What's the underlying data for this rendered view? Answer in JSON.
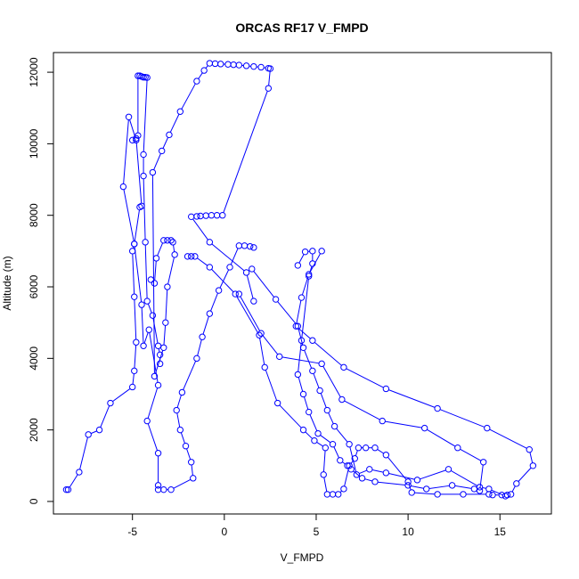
{
  "chart_data": {
    "type": "scatter",
    "title": "ORCAS RF17 V_FMPD",
    "xlabel": "V_FMPD",
    "ylabel": "Altitude (m)",
    "xlim": [
      -9.3,
      17.8
    ],
    "ylim": [
      -350,
      12550
    ],
    "x_ticks": [
      -5,
      0,
      5,
      10,
      15
    ],
    "x_tick_labels": [
      "-5",
      "0",
      "5",
      "10",
      "15"
    ],
    "y_ticks": [
      0,
      2000,
      4000,
      6000,
      8000,
      10000,
      12000
    ],
    "y_tick_labels": [
      "0",
      "2000",
      "4000",
      "6000",
      "8000",
      "10000",
      "12000"
    ],
    "grid": false,
    "legend": "none",
    "colors": {
      "series": "#0000ff",
      "axis": "#000000",
      "background": "#ffffff"
    },
    "series": [
      {
        "values": [
          [
            -8.6,
            330
          ],
          [
            -8.5,
            330
          ],
          [
            -7.9,
            820
          ],
          [
            -7.4,
            1870
          ],
          [
            -6.8,
            2000
          ],
          [
            -6.2,
            2750
          ],
          [
            -5.0,
            3200
          ],
          [
            -4.9,
            3650
          ],
          [
            -4.8,
            4450
          ],
          [
            -4.9,
            5720
          ],
          [
            -5.0,
            7000
          ],
          [
            -4.9,
            7200
          ],
          [
            -4.6,
            8230
          ],
          [
            -4.5,
            8260
          ],
          [
            -4.8,
            10150
          ],
          [
            -4.7,
            10230
          ],
          [
            -4.7,
            11900
          ],
          [
            -4.6,
            11900
          ],
          [
            -4.5,
            11880
          ],
          [
            -4.4,
            11860
          ],
          [
            -4.3,
            11860
          ],
          [
            -4.2,
            11850
          ],
          [
            -4.4,
            9700
          ],
          [
            -4.4,
            9100
          ],
          [
            -4.3,
            7250
          ],
          [
            -4.2,
            5600
          ],
          [
            -3.9,
            5200
          ],
          [
            -3.6,
            4350
          ],
          [
            -3.5,
            4100
          ],
          [
            -3.5,
            3850
          ]
        ]
      },
      {
        "values": [
          [
            -5.0,
            10100
          ],
          [
            -4.8,
            10100
          ],
          [
            -5.2,
            10750
          ],
          [
            -5.5,
            8800
          ],
          [
            -4.9,
            7200
          ],
          [
            -4.5,
            5500
          ],
          [
            -4.4,
            4350
          ],
          [
            -4.1,
            4800
          ],
          [
            -3.6,
            3250
          ],
          [
            -4.2,
            2250
          ],
          [
            -3.6,
            1350
          ],
          [
            -3.6,
            450
          ],
          [
            -3.6,
            330
          ],
          [
            -3.3,
            330
          ],
          [
            -2.9,
            330
          ],
          [
            -1.7,
            650
          ],
          [
            -1.8,
            1100
          ],
          [
            -2.1,
            1550
          ],
          [
            -2.4,
            2000
          ],
          [
            -2.6,
            2550
          ],
          [
            -2.3,
            3050
          ],
          [
            -1.5,
            4000
          ],
          [
            -1.2,
            4600
          ],
          [
            -0.8,
            5250
          ],
          [
            -0.3,
            5900
          ],
          [
            0.3,
            6550
          ],
          [
            0.8,
            7150
          ],
          [
            1.1,
            7150
          ],
          [
            1.4,
            7130
          ],
          [
            1.6,
            7100
          ]
        ]
      },
      {
        "values": [
          [
            -4.0,
            6200
          ],
          [
            -3.8,
            6100
          ],
          [
            -3.7,
            6800
          ],
          [
            -3.3,
            7300
          ],
          [
            -3.1,
            7300
          ],
          [
            -2.9,
            7300
          ],
          [
            -2.8,
            7250
          ],
          [
            -2.7,
            6900
          ],
          [
            -3.1,
            6000
          ],
          [
            -3.2,
            5000
          ],
          [
            -3.3,
            4300
          ],
          [
            -3.8,
            3500
          ],
          [
            -3.9,
            9200
          ],
          [
            -3.4,
            9800
          ],
          [
            -3.0,
            10250
          ],
          [
            -2.4,
            10900
          ],
          [
            -1.5,
            11750
          ],
          [
            -1.1,
            12050
          ],
          [
            -0.8,
            12250
          ],
          [
            -0.5,
            12240
          ],
          [
            -0.2,
            12230
          ],
          [
            0.2,
            12220
          ],
          [
            0.5,
            12210
          ],
          [
            0.8,
            12200
          ],
          [
            1.2,
            12180
          ],
          [
            1.6,
            12160
          ],
          [
            2.0,
            12140
          ],
          [
            2.4,
            12110
          ],
          [
            2.5,
            12100
          ],
          [
            2.4,
            11550
          ],
          [
            -0.1,
            8000
          ],
          [
            -0.4,
            8000
          ],
          [
            -0.7,
            8000
          ],
          [
            -1.0,
            7990
          ],
          [
            -1.3,
            7980
          ],
          [
            -1.5,
            7970
          ],
          [
            -1.8,
            7960
          ],
          [
            -0.8,
            7250
          ],
          [
            1.2,
            6400
          ],
          [
            1.6,
            5600
          ]
        ]
      },
      {
        "values": [
          [
            -2.0,
            6850
          ],
          [
            -1.8,
            6850
          ],
          [
            -1.6,
            6850
          ],
          [
            -0.8,
            6550
          ],
          [
            0.6,
            5800
          ],
          [
            1.9,
            4650
          ],
          [
            2.2,
            3750
          ],
          [
            2.9,
            2750
          ],
          [
            4.3,
            2000
          ],
          [
            4.9,
            1700
          ],
          [
            5.5,
            1500
          ],
          [
            5.4,
            750
          ],
          [
            5.6,
            200
          ],
          [
            5.9,
            200
          ],
          [
            6.2,
            200
          ],
          [
            6.5,
            350
          ],
          [
            6.8,
            1000
          ],
          [
            7.1,
            1200
          ],
          [
            7.3,
            1500
          ],
          [
            7.7,
            1500
          ],
          [
            8.2,
            1500
          ],
          [
            8.8,
            1300
          ],
          [
            10.0,
            550
          ],
          [
            10.2,
            250
          ],
          [
            11.6,
            200
          ],
          [
            13.0,
            200
          ],
          [
            14.4,
            200
          ],
          [
            14.6,
            180
          ],
          [
            15.1,
            180
          ],
          [
            15.4,
            180
          ]
        ]
      },
      {
        "values": [
          [
            1.5,
            6500
          ],
          [
            2.8,
            5650
          ],
          [
            4.0,
            4900
          ],
          [
            4.3,
            4300
          ],
          [
            4.8,
            3650
          ],
          [
            5.2,
            3100
          ],
          [
            5.6,
            2550
          ],
          [
            6.0,
            2100
          ],
          [
            6.8,
            1600
          ],
          [
            7.2,
            750
          ],
          [
            7.9,
            900
          ],
          [
            8.8,
            800
          ],
          [
            10.5,
            600
          ],
          [
            12.2,
            900
          ],
          [
            13.9,
            400
          ],
          [
            14.4,
            350
          ],
          [
            15.3,
            150
          ],
          [
            15.6,
            200
          ],
          [
            15.9,
            500
          ],
          [
            16.8,
            1000
          ],
          [
            16.6,
            1450
          ],
          [
            14.3,
            2050
          ],
          [
            11.6,
            2600
          ],
          [
            8.8,
            3150
          ],
          [
            6.5,
            3750
          ],
          [
            4.8,
            4500
          ],
          [
            3.9,
            4900
          ],
          [
            4.2,
            5700
          ],
          [
            4.6,
            6350
          ],
          [
            5.3,
            7000
          ]
        ]
      },
      {
        "values": [
          [
            4.0,
            6600
          ],
          [
            4.4,
            6980
          ],
          [
            4.8,
            7000
          ],
          [
            4.8,
            6650
          ],
          [
            4.6,
            6300
          ],
          [
            4.2,
            4500
          ],
          [
            4.0,
            3550
          ],
          [
            4.3,
            3000
          ],
          [
            4.6,
            2500
          ],
          [
            5.1,
            1900
          ],
          [
            5.9,
            1600
          ],
          [
            6.3,
            1150
          ],
          [
            6.7,
            1000
          ],
          [
            6.9,
            900
          ],
          [
            7.5,
            650
          ],
          [
            8.2,
            550
          ],
          [
            10.0,
            450
          ],
          [
            11.0,
            350
          ],
          [
            12.4,
            450
          ],
          [
            13.6,
            350
          ],
          [
            13.9,
            300
          ],
          [
            14.1,
            1100
          ],
          [
            12.7,
            1500
          ],
          [
            10.9,
            2050
          ],
          [
            8.6,
            2250
          ],
          [
            6.4,
            2850
          ],
          [
            5.3,
            3850
          ],
          [
            3.0,
            4050
          ],
          [
            2.0,
            4700
          ],
          [
            0.8,
            5800
          ]
        ]
      }
    ]
  }
}
